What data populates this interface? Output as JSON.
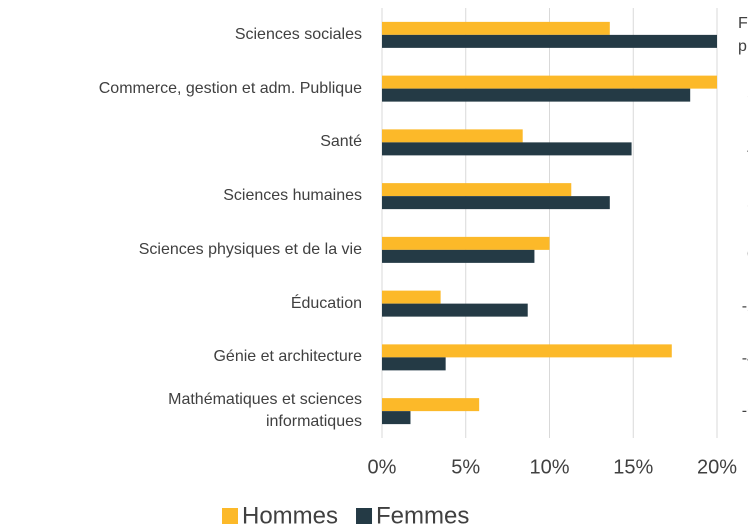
{
  "chart_data": {
    "type": "barh",
    "categories": [
      "Sciences sociales",
      "Commerce, gestion et adm. Publique",
      "Santé",
      "Sciences humaines",
      "Sciences physiques et de la vie",
      "Éducation",
      "Génie et architecture",
      "Mathématiques et sciences\ninformatiques"
    ],
    "series": [
      {
        "name": "Hommes",
        "color": "#fcb929",
        "values": [
          13.6,
          20.0,
          8.4,
          11.3,
          10.0,
          3.5,
          17.3,
          5.8
        ]
      },
      {
        "name": "Femmes",
        "color": "#243a45",
        "values": [
          20.0,
          18.4,
          14.9,
          13.6,
          9.1,
          8.7,
          3.8,
          1.7
        ]
      }
    ],
    "xlim": [
      0,
      20
    ],
    "xticks": [
      {
        "value": 0,
        "label": "0%"
      },
      {
        "value": 5,
        "label": "5%"
      },
      {
        "value": 10,
        "label": "10%"
      },
      {
        "value": 15,
        "label": "15%"
      },
      {
        "value": 20,
        "label": "20%"
      }
    ],
    "grid": true,
    "legend": "bottom"
  },
  "partial_chart": {
    "title_lines": [
      "F",
      "p"
    ],
    "tick_labels": [
      "6",
      "4",
      "2",
      "0",
      "-2",
      "-4",
      "-6"
    ]
  }
}
